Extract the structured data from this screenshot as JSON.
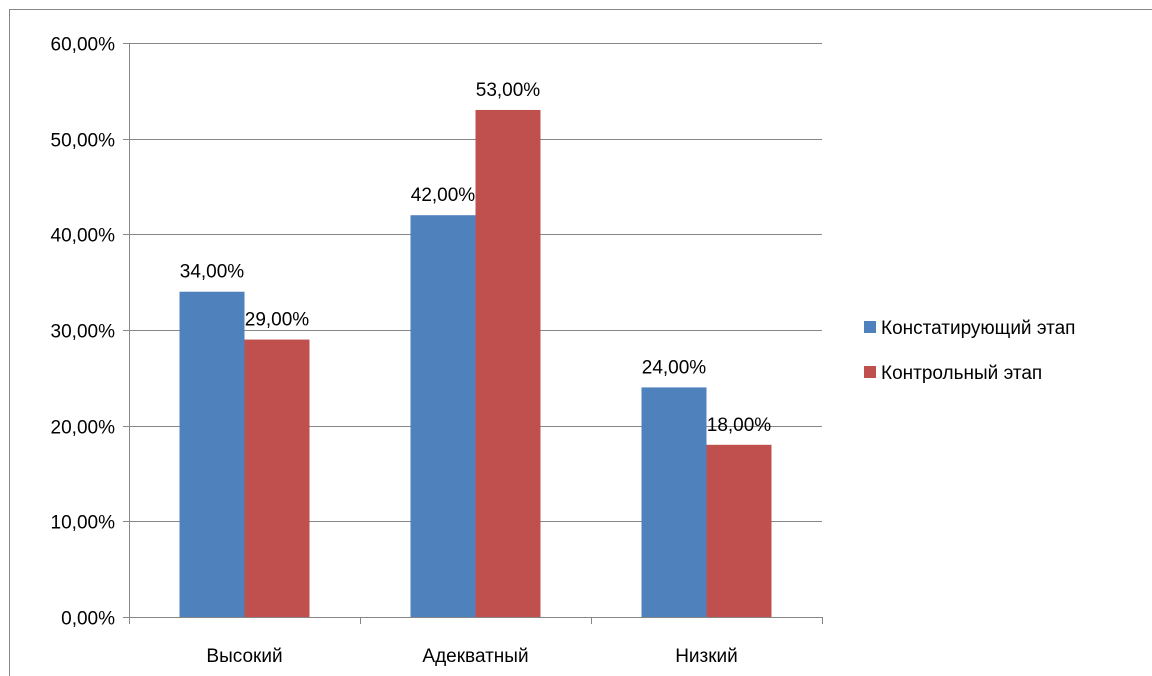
{
  "chart_data": {
    "type": "bar",
    "title": "",
    "xlabel": "",
    "ylabel": "",
    "categories": [
      "Высокий",
      "Адекватный",
      "Низкий"
    ],
    "series": [
      {
        "name": "Констатирующий этап",
        "color": "#4F81BD",
        "values": [
          34,
          42,
          24
        ],
        "labels": [
          "34,00%",
          "42,00%",
          "24,00%"
        ]
      },
      {
        "name": "Контрольный этап",
        "color": "#C0504D",
        "values": [
          29,
          53,
          18
        ],
        "labels": [
          "29,00%",
          "53,00%",
          "18,00%"
        ]
      }
    ],
    "ylim": [
      0,
      60
    ],
    "yticks": [
      0,
      10,
      20,
      30,
      40,
      50,
      60
    ],
    "ytick_labels": [
      "0,00%",
      "10,00%",
      "20,00%",
      "30,00%",
      "40,00%",
      "50,00%",
      "60,00%"
    ],
    "grid": true,
    "legend_position": "right"
  }
}
